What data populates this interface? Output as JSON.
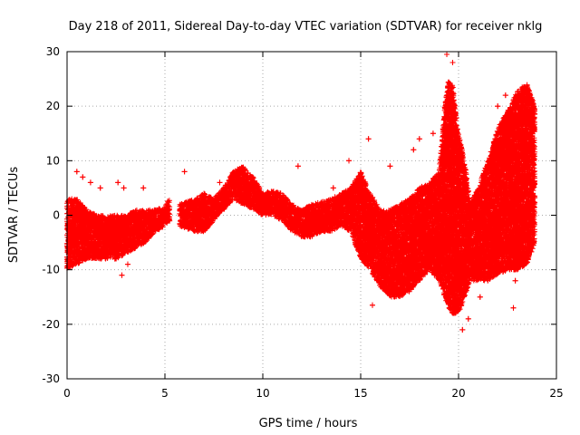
{
  "chart_data": {
    "type": "scatter",
    "title": "Day 218 of 2011, Sidereal Day-to-day VTEC variation (SDTVAR) for receiver nklg",
    "xlabel": "GPS time / hours",
    "ylabel": "SDTVAR / TECUs",
    "xlim": [
      0,
      25
    ],
    "ylim": [
      -30,
      30
    ],
    "x_ticks": [
      0,
      5,
      10,
      15,
      20,
      25
    ],
    "y_ticks": [
      -30,
      -20,
      -10,
      0,
      10,
      20,
      30
    ],
    "x_tick_labels": [
      "0",
      "5",
      "10",
      "15",
      "20",
      "25"
    ],
    "y_tick_labels": [
      "-30",
      "-20",
      "-10",
      "0",
      "10",
      "20",
      "30"
    ],
    "grid": true,
    "marker": "+",
    "color": "#ff0000",
    "series": [
      {
        "name": "SDTVAR",
        "envelope": {
          "x": [
            0,
            0.5,
            1,
            1.5,
            2,
            2.5,
            3,
            3.5,
            4,
            4.5,
            5,
            5.2,
            5.8,
            6.5,
            7,
            7.5,
            8,
            8.5,
            9,
            9.5,
            10,
            10.5,
            11,
            11.5,
            12,
            12.5,
            13,
            13.5,
            14,
            14.5,
            15,
            15.5,
            16,
            16.5,
            17,
            17.5,
            18,
            18.5,
            19,
            19.3,
            19.5,
            19.7,
            20,
            20.3,
            20.6,
            21,
            21.5,
            22,
            22.5,
            23,
            23.5,
            23.9
          ],
          "upper": [
            3,
            3,
            1,
            0,
            0,
            0,
            0,
            1,
            1,
            1,
            1.5,
            3,
            2,
            3,
            4,
            3,
            5,
            8,
            9,
            7,
            4,
            4.5,
            4,
            2,
            1,
            2,
            2.5,
            3,
            4,
            5,
            8,
            4,
            1,
            1,
            2,
            3,
            5,
            6,
            8,
            20,
            25,
            24,
            15,
            10,
            2,
            5,
            10,
            16,
            19,
            23,
            24,
            20
          ],
          "lower": [
            -10,
            -9,
            -8,
            -8,
            -8,
            -8,
            -7,
            -6,
            -5,
            -3,
            -2,
            -1,
            -2,
            -3,
            -3,
            -1,
            1,
            3,
            2,
            1,
            0,
            0,
            -1,
            -3,
            -4,
            -4,
            -3,
            -3,
            -2,
            -3,
            -8,
            -10,
            -13,
            -15,
            -15,
            -14,
            -12,
            -10,
            -12,
            -15,
            -17,
            -18,
            -18,
            -15,
            -12,
            -12,
            -12,
            -11,
            -10,
            -10,
            -9,
            -5
          ],
          "outlier_points": [
            [
              0.5,
              8
            ],
            [
              0.8,
              7
            ],
            [
              1.2,
              6
            ],
            [
              1.7,
              5
            ],
            [
              2.6,
              6
            ],
            [
              2.9,
              5
            ],
            [
              2.8,
              -11
            ],
            [
              3.1,
              -9
            ],
            [
              3.9,
              5
            ],
            [
              6.0,
              8
            ],
            [
              7.8,
              6
            ],
            [
              11.8,
              9
            ],
            [
              13.6,
              5
            ],
            [
              14.4,
              10
            ],
            [
              15.4,
              14
            ],
            [
              15.6,
              -16.5
            ],
            [
              16.5,
              9
            ],
            [
              17.7,
              12
            ],
            [
              18.0,
              14
            ],
            [
              18.7,
              15
            ],
            [
              19.4,
              29.5
            ],
            [
              19.7,
              28
            ],
            [
              20.2,
              -21
            ],
            [
              20.5,
              -19
            ],
            [
              21.1,
              -15
            ],
            [
              22.0,
              20
            ],
            [
              22.4,
              22
            ],
            [
              22.9,
              -12
            ],
            [
              22.8,
              -17
            ],
            [
              23.5,
              19
            ]
          ]
        }
      }
    ]
  }
}
